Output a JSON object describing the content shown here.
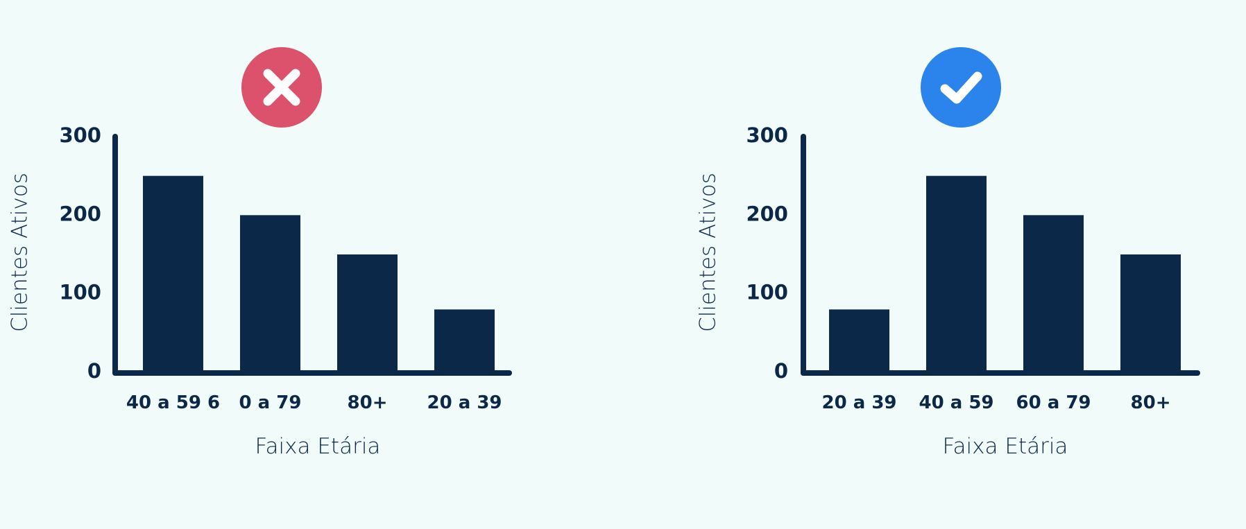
{
  "colors": {
    "background": "#f1fbf9",
    "ink": "#0b2848",
    "bad_badge": "#dc516c",
    "good_badge": "#2b83ec",
    "badge_mark": "#ffffff"
  },
  "chart_data": [
    {
      "type": "bar",
      "verdict": "incorrect",
      "badge_icon": "x-icon",
      "categories": [
        "40 a 59 6",
        "0 a 79",
        "80+",
        "20 a 39"
      ],
      "values": [
        250,
        200,
        150,
        80
      ],
      "xlabel": "Faixa Etária",
      "ylabel": "Clientes Ativos",
      "ylim": [
        0,
        300
      ],
      "yticks": [
        0,
        100,
        200,
        300
      ],
      "ytick_labels": [
        "0",
        "100",
        "200",
        "300"
      ],
      "grid": false,
      "legend": "none"
    },
    {
      "type": "bar",
      "verdict": "correct",
      "badge_icon": "check-icon",
      "categories": [
        "20 a 39",
        "40 a 59",
        "60 a 79",
        "80+"
      ],
      "values": [
        80,
        250,
        200,
        150
      ],
      "xlabel": "Faixa Etária",
      "ylabel": "Clientes Ativos",
      "ylim": [
        0,
        300
      ],
      "yticks": [
        0,
        100,
        200,
        300
      ],
      "ytick_labels": [
        "0",
        "100",
        "200",
        "300"
      ],
      "grid": false,
      "legend": "none"
    }
  ]
}
